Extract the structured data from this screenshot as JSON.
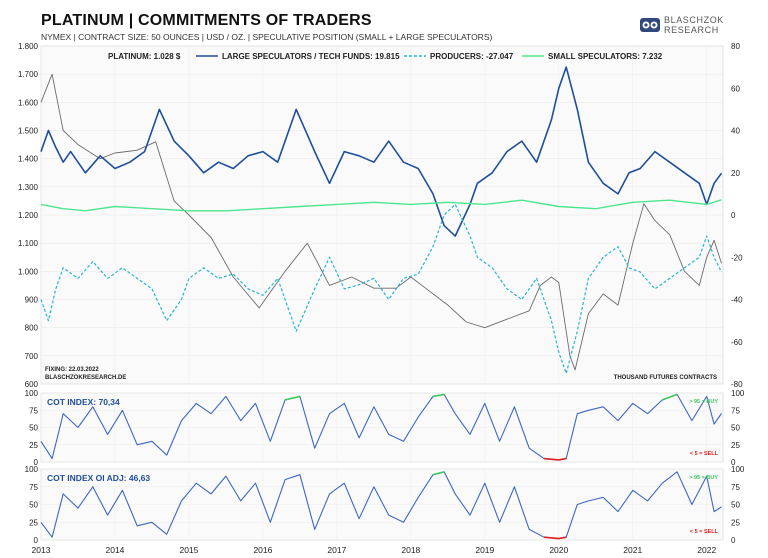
{
  "header": {
    "title": "PLATINUM | COMMITMENTS OF TRADERS",
    "subtitle": "NYMEX  |  CONTRACT SIZE: 50 OUNCES  |  USD / OZ.  |  SPECULATIVE  POSITION (SMALL + LARGE SPECULATORS)",
    "logo_line1": "BLASCHZOK",
    "logo_line2": "RESEARCH"
  },
  "colors": {
    "platinum": "#6b6b6b",
    "large_specs": "#1f4e9c",
    "producers": "#27b3d9",
    "small_specs": "#4ee58f",
    "cot_line": "#3d67c4",
    "buy_zone": "#3ec85a",
    "sell_zone": "#e02020"
  },
  "footer_notes": {
    "fixing": "FIXING:  22.03.2022",
    "site": "BLASCHZOKRESEARCH.DE",
    "units": "THOUSAND FUTURES CONTRACTS"
  },
  "chart_data": [
    {
      "type": "line",
      "x_range": [
        "2013-01",
        "2022-03"
      ],
      "x_ticks": [
        "2013",
        "2014",
        "2015",
        "2016",
        "2017",
        "2018",
        "2019",
        "2020",
        "2021",
        "2022"
      ],
      "left_axis": {
        "ylim": [
          600,
          1800
        ],
        "ticks": [
          "1.800",
          "1.700",
          "1.600",
          "1.500",
          "1.400",
          "1.300",
          "1.200",
          "1.100",
          "1.000",
          "900",
          "800",
          "700",
          "600"
        ]
      },
      "right_axis": {
        "ylim": [
          -80,
          80
        ],
        "ticks": [
          "80",
          "60",
          "40",
          "20",
          "0",
          "-20",
          "-40",
          "-60",
          "-80"
        ]
      },
      "legend": {
        "placement": "top"
      },
      "series": [
        {
          "name": "PLATINUM: 1.028 $",
          "axis": "left",
          "style": "solid",
          "x": [
            2013.0,
            2013.15,
            2013.3,
            2013.5,
            2013.8,
            2014.0,
            2014.3,
            2014.55,
            2014.8,
            2015.0,
            2015.3,
            2015.6,
            2015.95,
            2016.3,
            2016.6,
            2016.9,
            2017.2,
            2017.5,
            2017.8,
            2018.0,
            2018.2,
            2018.5,
            2018.75,
            2019.0,
            2019.3,
            2019.6,
            2019.75,
            2019.9,
            2020.0,
            2020.15,
            2020.22,
            2020.4,
            2020.6,
            2020.8,
            2021.0,
            2021.15,
            2021.3,
            2021.5,
            2021.7,
            2021.9,
            2022.0,
            2022.1,
            2022.2
          ],
          "y": [
            1600,
            1700,
            1500,
            1450,
            1400,
            1420,
            1430,
            1460,
            1250,
            1200,
            1120,
            980,
            870,
            1000,
            1100,
            950,
            980,
            940,
            940,
            980,
            940,
            880,
            820,
            800,
            830,
            860,
            950,
            980,
            960,
            700,
            650,
            850,
            920,
            880,
            1100,
            1240,
            1180,
            1130,
            1000,
            950,
            1050,
            1110,
            1028
          ]
        },
        {
          "name": "LARGE SPECULATORS / TECH FUNDS: 19.815",
          "axis": "right",
          "style": "solid",
          "x": [
            2013.0,
            2013.1,
            2013.2,
            2013.3,
            2013.4,
            2013.6,
            2013.8,
            2014.0,
            2014.2,
            2014.4,
            2014.6,
            2014.8,
            2015.0,
            2015.2,
            2015.4,
            2015.6,
            2015.8,
            2016.0,
            2016.2,
            2016.45,
            2016.7,
            2016.9,
            2017.1,
            2017.3,
            2017.5,
            2017.7,
            2017.9,
            2018.1,
            2018.3,
            2018.45,
            2018.6,
            2018.8,
            2018.9,
            2019.1,
            2019.3,
            2019.5,
            2019.7,
            2019.9,
            2020.0,
            2020.1,
            2020.25,
            2020.4,
            2020.6,
            2020.8,
            2020.95,
            2021.1,
            2021.3,
            2021.5,
            2021.7,
            2021.9,
            2022.0,
            2022.1,
            2022.2
          ],
          "y": [
            30,
            40,
            32,
            25,
            30,
            20,
            28,
            22,
            25,
            30,
            50,
            35,
            28,
            20,
            25,
            22,
            28,
            30,
            25,
            50,
            30,
            15,
            30,
            28,
            25,
            35,
            25,
            22,
            10,
            -5,
            -10,
            5,
            15,
            20,
            30,
            35,
            25,
            45,
            60,
            70,
            50,
            25,
            15,
            10,
            20,
            22,
            30,
            25,
            20,
            15,
            5,
            15,
            19.8
          ]
        },
        {
          "name": "PRODUCERS: -27.047",
          "axis": "right",
          "style": "dashed",
          "x": [
            2013.0,
            2013.1,
            2013.2,
            2013.3,
            2013.5,
            2013.7,
            2013.9,
            2014.1,
            2014.3,
            2014.5,
            2014.7,
            2014.9,
            2015.0,
            2015.2,
            2015.4,
            2015.6,
            2015.8,
            2016.0,
            2016.2,
            2016.45,
            2016.7,
            2016.9,
            2017.1,
            2017.3,
            2017.5,
            2017.7,
            2017.9,
            2018.1,
            2018.3,
            2018.45,
            2018.6,
            2018.8,
            2018.9,
            2019.1,
            2019.3,
            2019.5,
            2019.7,
            2019.9,
            2020.0,
            2020.1,
            2020.25,
            2020.4,
            2020.6,
            2020.8,
            2020.95,
            2021.1,
            2021.3,
            2021.5,
            2021.7,
            2021.9,
            2022.0,
            2022.1,
            2022.2
          ],
          "y": [
            -40,
            -50,
            -35,
            -25,
            -30,
            -22,
            -30,
            -25,
            -30,
            -35,
            -50,
            -40,
            -30,
            -25,
            -30,
            -28,
            -35,
            -38,
            -30,
            -55,
            -35,
            -20,
            -35,
            -33,
            -30,
            -40,
            -30,
            -28,
            -15,
            0,
            5,
            -10,
            -20,
            -25,
            -35,
            -40,
            -30,
            -50,
            -65,
            -75,
            -55,
            -30,
            -20,
            -15,
            -25,
            -27,
            -35,
            -30,
            -25,
            -20,
            -10,
            -20,
            -27
          ]
        },
        {
          "name": "SMALL SPECULATORS: 7.232",
          "axis": "right",
          "style": "solid",
          "x": [
            2013.0,
            2013.3,
            2013.6,
            2014.0,
            2014.5,
            2015.0,
            2015.5,
            2016.0,
            2016.5,
            2017.0,
            2017.5,
            2018.0,
            2018.5,
            2019.0,
            2019.5,
            2020.0,
            2020.5,
            2021.0,
            2021.5,
            2022.0,
            2022.2
          ],
          "y": [
            5,
            3,
            2,
            4,
            3,
            2,
            2,
            3,
            4,
            5,
            6,
            5,
            6,
            5,
            7,
            4,
            3,
            6,
            7,
            5,
            7.2
          ]
        }
      ]
    },
    {
      "type": "line",
      "title": "COT INDEX: 70,34",
      "ylim": [
        0,
        100
      ],
      "ticks": [
        "100",
        "75",
        "50",
        "25",
        "0"
      ],
      "annotations": [
        "> 95 = BUY",
        "< 5 = SELL"
      ],
      "series": [
        {
          "name": "COT INDEX",
          "axis": "left",
          "style": "solid",
          "x": [
            2013.0,
            2013.15,
            2013.3,
            2013.5,
            2013.7,
            2013.9,
            2014.1,
            2014.3,
            2014.5,
            2014.7,
            2014.9,
            2015.1,
            2015.3,
            2015.5,
            2015.7,
            2015.9,
            2016.1,
            2016.3,
            2016.5,
            2016.7,
            2016.9,
            2017.1,
            2017.3,
            2017.5,
            2017.7,
            2017.9,
            2018.1,
            2018.3,
            2018.45,
            2018.6,
            2018.8,
            2019.0,
            2019.2,
            2019.4,
            2019.6,
            2019.8,
            2020.0,
            2020.1,
            2020.25,
            2020.4,
            2020.6,
            2020.8,
            2021.0,
            2021.2,
            2021.4,
            2021.6,
            2021.8,
            2022.0,
            2022.1,
            2022.2
          ],
          "y": [
            30,
            5,
            70,
            50,
            80,
            40,
            75,
            25,
            30,
            10,
            60,
            85,
            70,
            95,
            60,
            85,
            30,
            90,
            95,
            20,
            70,
            85,
            35,
            80,
            40,
            30,
            65,
            95,
            98,
            70,
            40,
            85,
            30,
            80,
            20,
            5,
            3,
            5,
            70,
            75,
            80,
            60,
            85,
            70,
            90,
            98,
            60,
            95,
            55,
            70.3
          ]
        }
      ]
    },
    {
      "type": "line",
      "title": "COT INDEX OI ADJ: 46,63",
      "ylim": [
        0,
        100
      ],
      "ticks": [
        "100",
        "75",
        "50",
        "25",
        "0"
      ],
      "annotations": [
        "> 95 = BUY",
        "< 5 = SELL"
      ],
      "series": [
        {
          "name": "COT INDEX OI ADJ",
          "axis": "left",
          "style": "solid",
          "x": [
            2013.0,
            2013.15,
            2013.3,
            2013.5,
            2013.7,
            2013.9,
            2014.1,
            2014.3,
            2014.5,
            2014.7,
            2014.9,
            2015.1,
            2015.3,
            2015.5,
            2015.7,
            2015.9,
            2016.1,
            2016.3,
            2016.5,
            2016.7,
            2016.9,
            2017.1,
            2017.3,
            2017.5,
            2017.7,
            2017.9,
            2018.1,
            2018.3,
            2018.45,
            2018.6,
            2018.8,
            2019.0,
            2019.2,
            2019.4,
            2019.6,
            2019.8,
            2020.0,
            2020.1,
            2020.25,
            2020.4,
            2020.6,
            2020.8,
            2021.0,
            2021.2,
            2021.4,
            2021.6,
            2021.8,
            2022.0,
            2022.1,
            2022.2
          ],
          "y": [
            25,
            4,
            65,
            45,
            75,
            35,
            70,
            20,
            25,
            8,
            55,
            80,
            65,
            90,
            55,
            80,
            25,
            85,
            92,
            15,
            65,
            80,
            30,
            75,
            35,
            25,
            60,
            92,
            96,
            65,
            35,
            80,
            25,
            75,
            15,
            4,
            2,
            4,
            50,
            55,
            60,
            40,
            70,
            55,
            80,
            96,
            50,
            90,
            40,
            46.6
          ]
        }
      ]
    }
  ]
}
